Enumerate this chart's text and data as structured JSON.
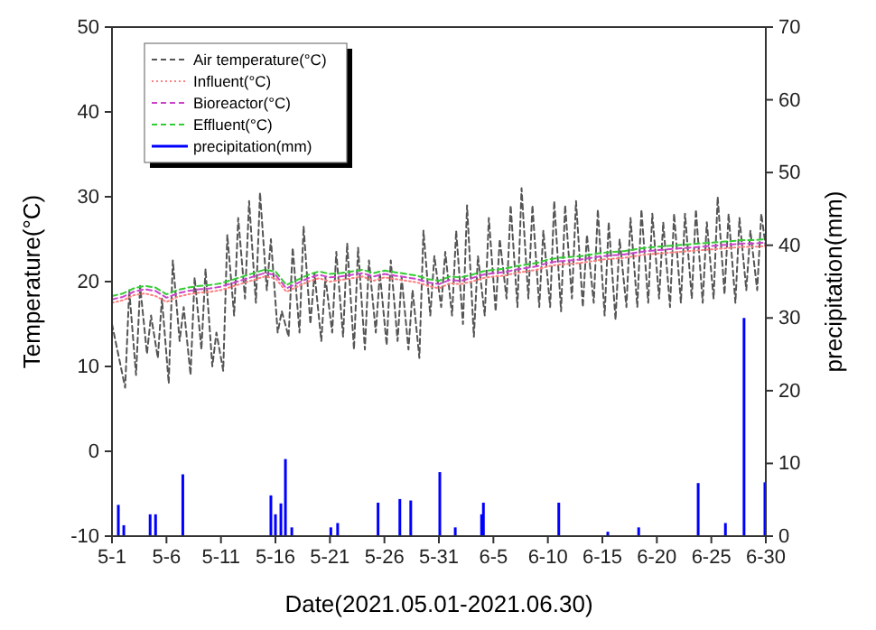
{
  "chart_data": {
    "type": "line",
    "xlabel": "Date(2021.05.01-2021.06.30)",
    "ylabel": "Temperature(°C)",
    "y2label": "precipitation(mm)",
    "xlim": [
      "2021-05-01",
      "2021-06-30"
    ],
    "xticks": [
      {
        "value": "2021-05-01",
        "label": "5-1"
      },
      {
        "value": "2021-05-06",
        "label": "5-6"
      },
      {
        "value": "2021-05-11",
        "label": "5-11"
      },
      {
        "value": "2021-05-16",
        "label": "5-16"
      },
      {
        "value": "2021-05-21",
        "label": "5-21"
      },
      {
        "value": "2021-05-26",
        "label": "5-26"
      },
      {
        "value": "2021-05-31",
        "label": "5-31"
      },
      {
        "value": "2021-06-05",
        "label": "6-5"
      },
      {
        "value": "2021-06-10",
        "label": "6-10"
      },
      {
        "value": "2021-06-15",
        "label": "6-15"
      },
      {
        "value": "2021-06-20",
        "label": "6-20"
      },
      {
        "value": "2021-06-25",
        "label": "6-25"
      },
      {
        "value": "2021-06-30",
        "label": "6-30"
      }
    ],
    "ylim": [
      -10,
      50
    ],
    "yticks": [
      -10,
      0,
      10,
      20,
      30,
      40,
      50
    ],
    "y2lim": [
      0,
      70
    ],
    "y2ticks": [
      0,
      10,
      20,
      30,
      40,
      50,
      60,
      70
    ],
    "legend": "top left",
    "grid": false,
    "x": [
      "2021-05-01",
      "2021-05-02",
      "2021-05-03",
      "2021-05-04",
      "2021-05-05",
      "2021-05-06",
      "2021-05-07",
      "2021-05-08",
      "2021-05-09",
      "2021-05-10",
      "2021-05-11",
      "2021-05-12",
      "2021-05-13",
      "2021-05-14",
      "2021-05-15",
      "2021-05-16",
      "2021-05-17",
      "2021-05-18",
      "2021-05-19",
      "2021-05-20",
      "2021-05-21",
      "2021-05-22",
      "2021-05-23",
      "2021-05-24",
      "2021-05-25",
      "2021-05-26",
      "2021-05-27",
      "2021-05-28",
      "2021-05-29",
      "2021-05-30",
      "2021-05-31",
      "2021-06-01",
      "2021-06-02",
      "2021-06-03",
      "2021-06-04",
      "2021-06-05",
      "2021-06-06",
      "2021-06-07",
      "2021-06-08",
      "2021-06-09",
      "2021-06-10",
      "2021-06-11",
      "2021-06-12",
      "2021-06-13",
      "2021-06-14",
      "2021-06-15",
      "2021-06-16",
      "2021-06-17",
      "2021-06-18",
      "2021-06-19",
      "2021-06-20",
      "2021-06-21",
      "2021-06-22",
      "2021-06-23",
      "2021-06-24",
      "2021-06-25",
      "2021-06-26",
      "2021-06-27",
      "2021-06-28",
      "2021-06-29",
      "2021-06-30"
    ],
    "series": [
      {
        "name": "Air temperature(°C)",
        "color": "#555555",
        "line_style": "dashed",
        "x": [
          "2021-05-01T00:00",
          "2021-05-02T05:00",
          "2021-05-02T14:00",
          "2021-05-03T05:00",
          "2021-05-03T14:00",
          "2021-05-04T05:00",
          "2021-05-04T14:00",
          "2021-05-05T05:00",
          "2021-05-05T14:00",
          "2021-05-06T05:00",
          "2021-05-06T14:00",
          "2021-05-07T05:00",
          "2021-05-07T14:00",
          "2021-05-08T05:00",
          "2021-05-08T14:00",
          "2021-05-09T05:00",
          "2021-05-09T14:00",
          "2021-05-10T05:00",
          "2021-05-10T14:00",
          "2021-05-11T05:00",
          "2021-05-11T14:00",
          "2021-05-12T05:00",
          "2021-05-12T14:00",
          "2021-05-13T05:00",
          "2021-05-13T14:00",
          "2021-05-14T05:00",
          "2021-05-14T14:00",
          "2021-05-15T05:00",
          "2021-05-15T14:00",
          "2021-05-16T05:00",
          "2021-05-16T14:00",
          "2021-05-17T05:00",
          "2021-05-17T14:00",
          "2021-05-18T05:00",
          "2021-05-18T14:00",
          "2021-05-19T05:00",
          "2021-05-19T14:00",
          "2021-05-20T05:00",
          "2021-05-20T14:00",
          "2021-05-21T05:00",
          "2021-05-21T14:00",
          "2021-05-22T05:00",
          "2021-05-22T14:00",
          "2021-05-23T05:00",
          "2021-05-23T14:00",
          "2021-05-24T05:00",
          "2021-05-24T14:00",
          "2021-05-25T05:00",
          "2021-05-25T14:00",
          "2021-05-26T05:00",
          "2021-05-26T14:00",
          "2021-05-27T05:00",
          "2021-05-27T14:00",
          "2021-05-28T05:00",
          "2021-05-28T14:00",
          "2021-05-29T05:00",
          "2021-05-29T14:00",
          "2021-05-30T05:00",
          "2021-05-30T14:00",
          "2021-05-31T05:00",
          "2021-05-31T14:00",
          "2021-06-01T05:00",
          "2021-06-01T14:00",
          "2021-06-02T05:00",
          "2021-06-02T14:00",
          "2021-06-03T05:00",
          "2021-06-03T14:00",
          "2021-06-04T05:00",
          "2021-06-04T14:00",
          "2021-06-05T05:00",
          "2021-06-05T14:00",
          "2021-06-06T05:00",
          "2021-06-06T14:00",
          "2021-06-07T05:00",
          "2021-06-07T14:00",
          "2021-06-08T05:00",
          "2021-06-08T14:00",
          "2021-06-09T05:00",
          "2021-06-09T14:00",
          "2021-06-10T05:00",
          "2021-06-10T14:00",
          "2021-06-11T05:00",
          "2021-06-11T14:00",
          "2021-06-12T05:00",
          "2021-06-12T14:00",
          "2021-06-13T05:00",
          "2021-06-13T14:00",
          "2021-06-14T05:00",
          "2021-06-14T14:00",
          "2021-06-15T05:00",
          "2021-06-15T14:00",
          "2021-06-16T05:00",
          "2021-06-16T14:00",
          "2021-06-17T05:00",
          "2021-06-17T14:00",
          "2021-06-18T05:00",
          "2021-06-18T14:00",
          "2021-06-19T05:00",
          "2021-06-19T14:00",
          "2021-06-20T05:00",
          "2021-06-20T14:00",
          "2021-06-21T05:00",
          "2021-06-21T14:00",
          "2021-06-22T05:00",
          "2021-06-22T14:00",
          "2021-06-23T05:00",
          "2021-06-23T14:00",
          "2021-06-24T05:00",
          "2021-06-24T14:00",
          "2021-06-25T05:00",
          "2021-06-25T14:00",
          "2021-06-26T05:00",
          "2021-06-26T14:00",
          "2021-06-27T05:00",
          "2021-06-27T14:00",
          "2021-06-28T05:00",
          "2021-06-28T14:00",
          "2021-06-29T05:00",
          "2021-06-29T14:00",
          "2021-06-30T00:00"
        ],
        "values": [
          15,
          7.5,
          19,
          9,
          19.5,
          11.5,
          16,
          11,
          18,
          8,
          22.5,
          13,
          17,
          9,
          20.5,
          12,
          21.5,
          10,
          14,
          9.5,
          25.5,
          16,
          27.5,
          18,
          29.5,
          17.5,
          30.5,
          19,
          25,
          14,
          16.5,
          13.5,
          24,
          14,
          26.5,
          15,
          21,
          13,
          20.5,
          14,
          23.5,
          13.5,
          24.5,
          12,
          24,
          12,
          22.5,
          14,
          21,
          12.5,
          22.5,
          13,
          20.5,
          12,
          19,
          11,
          26,
          16,
          23,
          17,
          23.5,
          16,
          26,
          15,
          29,
          13.5,
          23,
          16,
          27.5,
          16.5,
          25,
          18,
          29,
          17,
          31,
          18,
          29,
          17,
          26,
          17,
          29.5,
          16.5,
          29,
          18,
          29.5,
          17,
          25.5,
          17.5,
          28.5,
          16,
          27,
          15.5,
          25,
          17,
          27.5,
          17,
          28.5,
          17.5,
          28,
          18,
          27,
          17,
          28,
          17.5,
          28,
          18,
          28.5,
          17.5,
          27,
          18,
          30,
          18.5,
          28,
          17.5,
          27.5,
          19,
          26,
          19,
          28,
          24
        ]
      },
      {
        "name": "Influent(°C)",
        "color": "#ff7f7f",
        "line_style": "dotted",
        "values": [
          17.5,
          17.8,
          18.4,
          18.6,
          18.3,
          17.6,
          18.2,
          18.5,
          18.7,
          18.8,
          19,
          19.4,
          19.8,
          20.2,
          20.6,
          20.4,
          18.8,
          19.4,
          20,
          20.4,
          20,
          20.2,
          20.4,
          20.6,
          20.1,
          20.5,
          20.3,
          20.1,
          19.9,
          19.5,
          19.2,
          19.8,
          19.7,
          20,
          20.4,
          20.6,
          20.7,
          21,
          21.2,
          21.4,
          21.8,
          22,
          22.1,
          22.2,
          22.4,
          22.6,
          22.7,
          22.8,
          23,
          23.2,
          23.3,
          23.4,
          23.5,
          23.6,
          23.7,
          23.8,
          23.9,
          24,
          24.1,
          24.1,
          24.2
        ]
      },
      {
        "name": "Bioreactor(°C)",
        "color": "#cc44cc",
        "line_style": "dashed",
        "values": [
          17.9,
          18.2,
          18.8,
          19.1,
          18.9,
          18.1,
          18.6,
          18.9,
          19.1,
          19.2,
          19.4,
          19.8,
          20.2,
          20.6,
          21,
          20.8,
          19.2,
          19.8,
          20.4,
          20.8,
          20.5,
          20.6,
          20.8,
          21,
          20.6,
          20.9,
          20.7,
          20.5,
          20.3,
          19.9,
          19.7,
          20.2,
          20.1,
          20.4,
          20.8,
          21,
          21.1,
          21.4,
          21.6,
          21.8,
          22.2,
          22.4,
          22.5,
          22.6,
          22.8,
          23,
          23.1,
          23.2,
          23.4,
          23.6,
          23.7,
          23.8,
          23.9,
          24,
          24.1,
          24.2,
          24.3,
          24.4,
          24.5,
          24.5,
          24.6
        ]
      },
      {
        "name": "Effluent(°C)",
        "color": "#33cc33",
        "line_style": "dashed",
        "values": [
          18.3,
          18.6,
          19.2,
          19.5,
          19.3,
          18.5,
          19,
          19.3,
          19.5,
          19.6,
          19.8,
          20.2,
          20.6,
          21,
          21.4,
          21.2,
          19.6,
          20.2,
          20.8,
          21.2,
          20.9,
          21,
          21.2,
          21.4,
          21,
          21.3,
          21.1,
          20.9,
          20.7,
          20.3,
          20.1,
          20.6,
          20.5,
          20.8,
          21.2,
          21.4,
          21.5,
          21.8,
          22,
          22.2,
          22.6,
          22.8,
          22.9,
          23,
          23.2,
          23.4,
          23.5,
          23.6,
          23.8,
          24,
          24.1,
          24.2,
          24.3,
          24.4,
          24.5,
          24.6,
          24.7,
          24.8,
          24.9,
          24.9,
          25
        ]
      },
      {
        "name": "precipitation(mm)",
        "type": "bar",
        "axis": "y2",
        "color": "#0000ff",
        "x": [
          "2021-05-01T14:00",
          "2021-05-02T02:00",
          "2021-05-04T12:00",
          "2021-05-05T00:00",
          "2021-05-07T12:00",
          "2021-05-15T14:00",
          "2021-05-16T00:00",
          "2021-05-16T12:00",
          "2021-05-16T22:00",
          "2021-05-17T12:00",
          "2021-05-21T02:00",
          "2021-05-21T17:00",
          "2021-05-25T10:00",
          "2021-05-27T10:00",
          "2021-05-28T10:00",
          "2021-05-31T02:00",
          "2021-06-01T12:00",
          "2021-06-03T22:00",
          "2021-06-04T02:00",
          "2021-06-11T00:00",
          "2021-06-15T12:00",
          "2021-06-18T08:00",
          "2021-06-23T19:00",
          "2021-06-26T07:00",
          "2021-06-28T00:00",
          "2021-06-29T22:00"
        ],
        "values": [
          4.3,
          1.5,
          3,
          3,
          8.5,
          5.6,
          3,
          4.5,
          10.6,
          1.2,
          1.2,
          1.8,
          4.6,
          5.1,
          4.9,
          8.8,
          1.2,
          3,
          4.6,
          4.6,
          0.6,
          1.2,
          7.3,
          1.8,
          30,
          7.4
        ]
      }
    ]
  }
}
